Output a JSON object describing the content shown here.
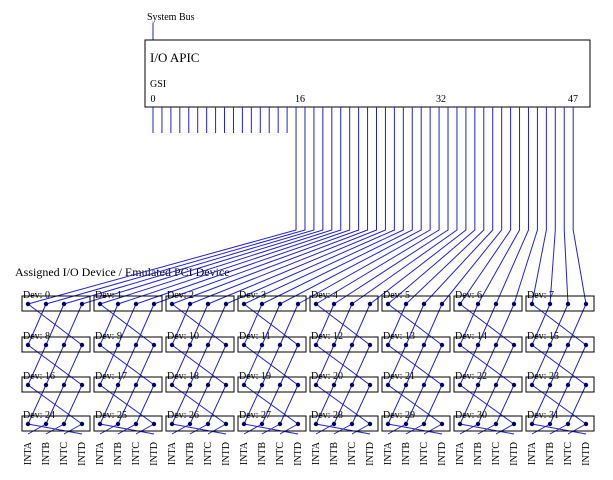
{
  "bus": "System Bus",
  "apic": {
    "title": "I/O APIC",
    "gsi": "GSI",
    "ticks": [
      "0",
      "16",
      "32",
      "47"
    ]
  },
  "section": "Assigned I/O Device / Emulated PCI Device",
  "devices": [
    "Dev: 0",
    "Dev: 1",
    "Dev: 2",
    "Dev: 3",
    "Dev: 4",
    "Dev: 5",
    "Dev: 6",
    "Dev: 7",
    "Dev: 8",
    "Dev: 9",
    "Dev: 10",
    "Dev: 11",
    "Dev: 12",
    "Dev: 13",
    "Dev: 14",
    "Dev: 15",
    "Dev: 16",
    "Dev: 17",
    "Dev: 18",
    "Dev: 19",
    "Dev: 20",
    "Dev: 21",
    "Dev: 22",
    "Dev: 23",
    "Dev: 24",
    "Dev: 25",
    "Dev: 26",
    "Dev: 27",
    "Dev: 28",
    "Dev: 29",
    "Dev: 30",
    "Dev: 31"
  ],
  "pins": [
    "INTA",
    "INTB",
    "INTC",
    "INTD"
  ]
}
